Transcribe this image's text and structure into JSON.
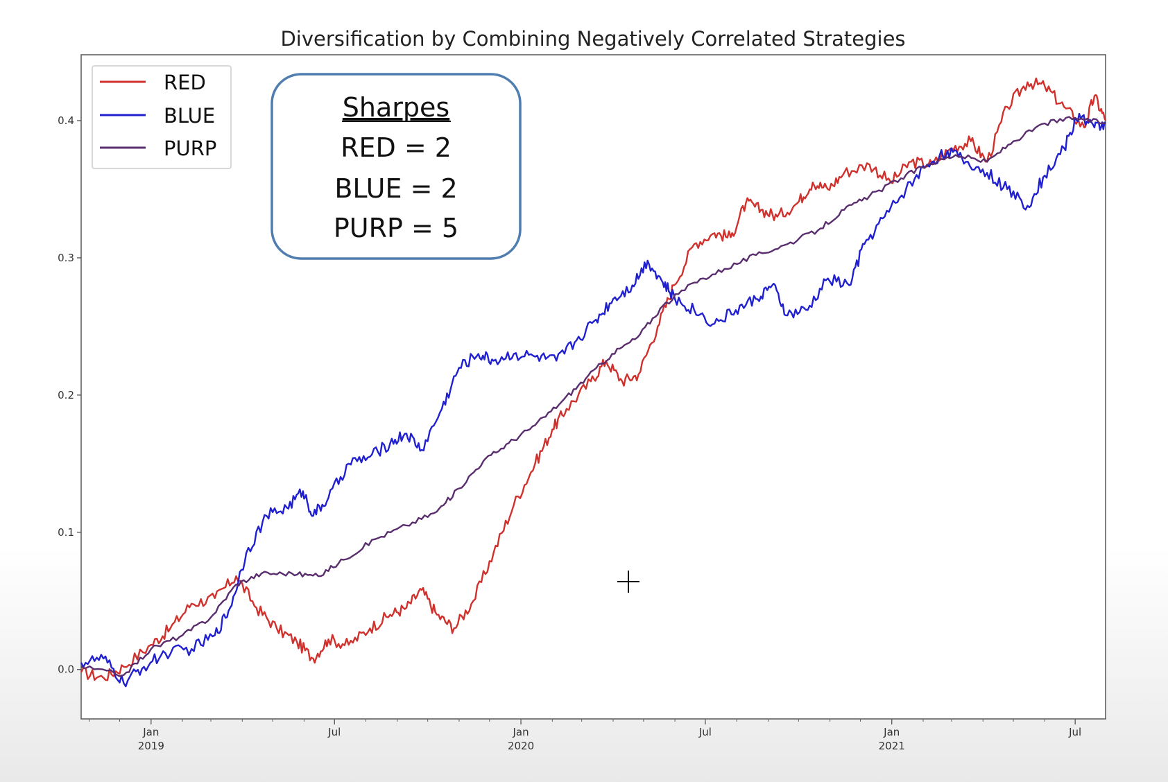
{
  "chart_data": {
    "type": "line",
    "title": "Diversification by Combining Negatively Correlated Strategies",
    "xlabel": "",
    "ylabel": "",
    "x_axis": "date",
    "xlim": [
      "2018-10-24",
      "2021-07-31"
    ],
    "ylim": [
      -0.036,
      0.448
    ],
    "grid": false,
    "legend_position": "top-left",
    "y_ticks": [
      0.0,
      0.1,
      0.2,
      0.3,
      0.4
    ],
    "y_tick_labels": [
      "0.0",
      "0.1",
      "0.2",
      "0.3",
      "0.4"
    ],
    "x_ticks": [
      {
        "date": "2019-01-01",
        "label": "Jan",
        "year": "2019"
      },
      {
        "date": "2019-07-01",
        "label": "Jul",
        "year": ""
      },
      {
        "date": "2020-01-01",
        "label": "Jan",
        "year": "2020"
      },
      {
        "date": "2020-07-01",
        "label": "Jul",
        "year": ""
      },
      {
        "date": "2021-01-01",
        "label": "Jan",
        "year": "2021"
      },
      {
        "date": "2021-07-01",
        "label": "Jul",
        "year": ""
      }
    ],
    "series": [
      {
        "name": "RED",
        "color": "#d0312d",
        "points": [
          [
            "2018-10-24",
            -0.002
          ],
          [
            "2018-11-15",
            -0.006
          ],
          [
            "2018-12-05",
            0.002
          ],
          [
            "2019-01-01",
            0.018
          ],
          [
            "2019-01-20",
            0.03
          ],
          [
            "2019-02-10",
            0.048
          ],
          [
            "2019-03-05",
            0.052
          ],
          [
            "2019-03-26",
            0.068
          ],
          [
            "2019-04-15",
            0.045
          ],
          [
            "2019-05-05",
            0.03
          ],
          [
            "2019-05-25",
            0.02
          ],
          [
            "2019-06-10",
            0.008
          ],
          [
            "2019-06-25",
            0.022
          ],
          [
            "2019-07-15",
            0.018
          ],
          [
            "2019-08-05",
            0.03
          ],
          [
            "2019-08-25",
            0.04
          ],
          [
            "2019-09-10",
            0.045
          ],
          [
            "2019-09-25",
            0.058
          ],
          [
            "2019-10-10",
            0.04
          ],
          [
            "2019-10-27",
            0.03
          ],
          [
            "2019-11-15",
            0.05
          ],
          [
            "2019-12-05",
            0.085
          ],
          [
            "2019-12-25",
            0.12
          ],
          [
            "2020-01-15",
            0.15
          ],
          [
            "2020-02-01",
            0.175
          ],
          [
            "2020-02-15",
            0.19
          ],
          [
            "2020-03-10",
            0.21
          ],
          [
            "2020-03-25",
            0.225
          ],
          [
            "2020-04-10",
            0.21
          ],
          [
            "2020-04-26",
            0.215
          ],
          [
            "2020-05-15",
            0.25
          ],
          [
            "2020-05-31",
            0.28
          ],
          [
            "2020-06-20",
            0.31
          ],
          [
            "2020-07-10",
            0.318
          ],
          [
            "2020-07-26",
            0.315
          ],
          [
            "2020-08-10",
            0.34
          ],
          [
            "2020-08-25",
            0.335
          ],
          [
            "2020-09-10",
            0.33
          ],
          [
            "2020-09-30",
            0.34
          ],
          [
            "2020-10-15",
            0.355
          ],
          [
            "2020-10-30",
            0.35
          ],
          [
            "2020-11-15",
            0.362
          ],
          [
            "2020-12-10",
            0.368
          ],
          [
            "2020-12-31",
            0.355
          ],
          [
            "2021-01-20",
            0.37
          ],
          [
            "2021-02-10",
            0.368
          ],
          [
            "2021-03-01",
            0.38
          ],
          [
            "2021-03-20",
            0.385
          ],
          [
            "2021-04-05",
            0.37
          ],
          [
            "2021-04-25",
            0.41
          ],
          [
            "2021-05-15",
            0.428
          ],
          [
            "2021-06-01",
            0.425
          ],
          [
            "2021-06-20",
            0.41
          ],
          [
            "2021-07-10",
            0.395
          ],
          [
            "2021-07-20",
            0.418
          ],
          [
            "2021-07-31",
            0.4
          ]
        ]
      },
      {
        "name": "BLUE",
        "color": "#2020d0",
        "points": [
          [
            "2018-10-24",
            0.005
          ],
          [
            "2018-11-15",
            0.008
          ],
          [
            "2018-12-05",
            -0.01
          ],
          [
            "2018-12-25",
            0.002
          ],
          [
            "2019-01-15",
            0.012
          ],
          [
            "2019-02-10",
            0.015
          ],
          [
            "2019-03-05",
            0.025
          ],
          [
            "2019-03-20",
            0.045
          ],
          [
            "2019-04-05",
            0.085
          ],
          [
            "2019-04-25",
            0.112
          ],
          [
            "2019-05-15",
            0.118
          ],
          [
            "2019-05-31",
            0.13
          ],
          [
            "2019-06-10",
            0.112
          ],
          [
            "2019-06-25",
            0.125
          ],
          [
            "2019-07-15",
            0.15
          ],
          [
            "2019-08-05",
            0.155
          ],
          [
            "2019-08-25",
            0.165
          ],
          [
            "2019-09-10",
            0.172
          ],
          [
            "2019-09-25",
            0.16
          ],
          [
            "2019-10-15",
            0.19
          ],
          [
            "2019-11-01",
            0.22
          ],
          [
            "2019-11-20",
            0.23
          ],
          [
            "2019-12-05",
            0.225
          ],
          [
            "2019-12-25",
            0.23
          ],
          [
            "2020-01-15",
            0.228
          ],
          [
            "2020-02-05",
            0.225
          ],
          [
            "2020-02-25",
            0.24
          ],
          [
            "2020-03-15",
            0.255
          ],
          [
            "2020-04-01",
            0.27
          ],
          [
            "2020-04-20",
            0.28
          ],
          [
            "2020-05-05",
            0.298
          ],
          [
            "2020-05-20",
            0.282
          ],
          [
            "2020-06-01",
            0.27
          ],
          [
            "2020-06-20",
            0.262
          ],
          [
            "2020-07-10",
            0.252
          ],
          [
            "2020-07-31",
            0.262
          ],
          [
            "2020-08-20",
            0.27
          ],
          [
            "2020-09-05",
            0.28
          ],
          [
            "2020-09-20",
            0.258
          ],
          [
            "2020-10-10",
            0.262
          ],
          [
            "2020-10-30",
            0.285
          ],
          [
            "2020-11-20",
            0.28
          ],
          [
            "2020-12-05",
            0.31
          ],
          [
            "2020-12-25",
            0.33
          ],
          [
            "2021-01-15",
            0.35
          ],
          [
            "2021-02-05",
            0.368
          ],
          [
            "2021-02-25",
            0.378
          ],
          [
            "2021-03-15",
            0.37
          ],
          [
            "2021-04-05",
            0.362
          ],
          [
            "2021-04-25",
            0.35
          ],
          [
            "2021-05-15",
            0.338
          ],
          [
            "2021-06-01",
            0.36
          ],
          [
            "2021-06-20",
            0.38
          ],
          [
            "2021-07-05",
            0.405
          ],
          [
            "2021-07-20",
            0.395
          ],
          [
            "2021-07-31",
            0.398
          ]
        ]
      },
      {
        "name": "PURP",
        "color": "#5a2d6e",
        "points": [
          [
            "2018-10-24",
            0.002
          ],
          [
            "2018-12-05",
            -0.004
          ],
          [
            "2019-01-01",
            0.015
          ],
          [
            "2019-02-01",
            0.025
          ],
          [
            "2019-03-01",
            0.038
          ],
          [
            "2019-03-26",
            0.062
          ],
          [
            "2019-04-20",
            0.07
          ],
          [
            "2019-05-20",
            0.07
          ],
          [
            "2019-06-15",
            0.068
          ],
          [
            "2019-07-10",
            0.08
          ],
          [
            "2019-08-10",
            0.095
          ],
          [
            "2019-09-10",
            0.105
          ],
          [
            "2019-10-10",
            0.115
          ],
          [
            "2019-11-01",
            0.132
          ],
          [
            "2019-11-25",
            0.152
          ],
          [
            "2019-12-20",
            0.165
          ],
          [
            "2020-01-15",
            0.178
          ],
          [
            "2020-02-10",
            0.195
          ],
          [
            "2020-03-05",
            0.212
          ],
          [
            "2020-03-31",
            0.23
          ],
          [
            "2020-04-25",
            0.242
          ],
          [
            "2020-05-20",
            0.265
          ],
          [
            "2020-06-20",
            0.282
          ],
          [
            "2020-07-20",
            0.292
          ],
          [
            "2020-08-20",
            0.302
          ],
          [
            "2020-09-20",
            0.31
          ],
          [
            "2020-10-20",
            0.32
          ],
          [
            "2020-11-15",
            0.335
          ],
          [
            "2020-12-10",
            0.345
          ],
          [
            "2021-01-10",
            0.358
          ],
          [
            "2021-02-05",
            0.368
          ],
          [
            "2021-03-05",
            0.375
          ],
          [
            "2021-04-05",
            0.37
          ],
          [
            "2021-05-01",
            0.385
          ],
          [
            "2021-06-01",
            0.398
          ],
          [
            "2021-07-01",
            0.402
          ],
          [
            "2021-07-31",
            0.398
          ]
        ]
      }
    ],
    "annotation": {
      "heading": "Sharpes",
      "lines": [
        "RED = 2",
        "BLUE = 2",
        "PURP = 5"
      ]
    }
  }
}
